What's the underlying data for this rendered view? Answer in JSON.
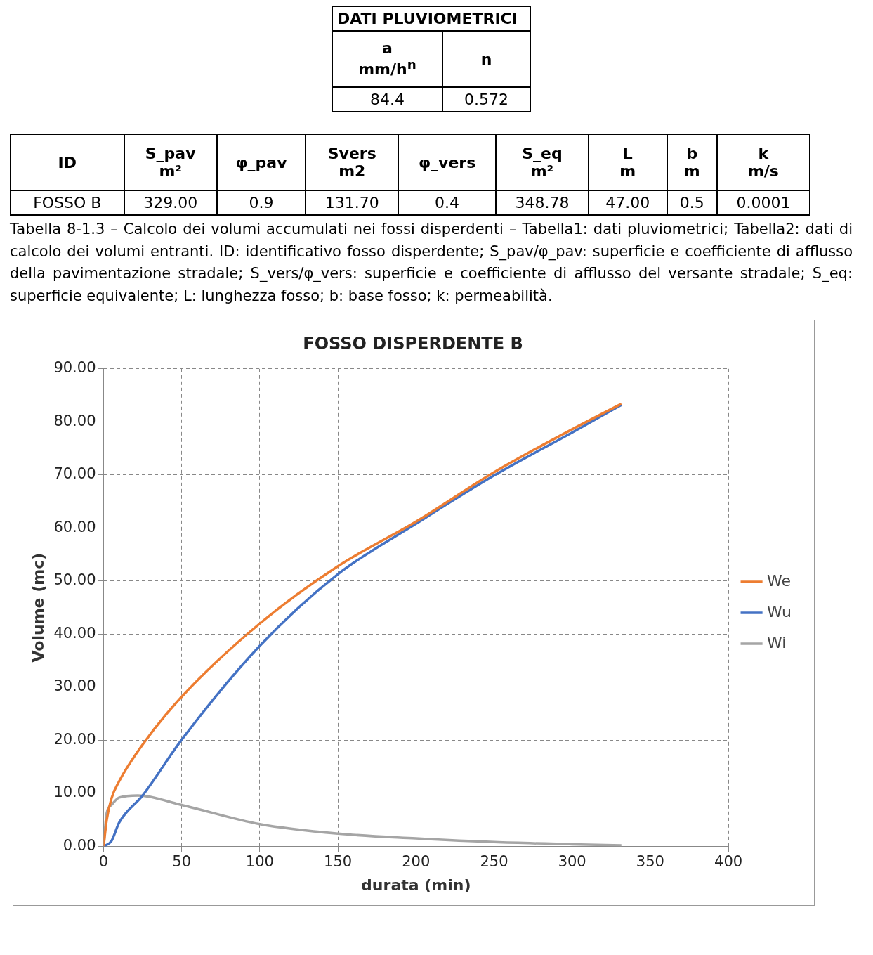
{
  "chart_data": [
    {
      "type": "other",
      "title": "DATI PLUVIOMETRICI",
      "categories": [
        "a\nmm/h$^{n}$",
        "n"
      ],
      "cell_labels": [
        [
          "84.4",
          "0.572"
        ]
      ]
    },
    {
      "type": "other",
      "categories": [
        "ID",
        "S_pav\nm²",
        "φ_pav",
        "Svers\nm2",
        "φ_vers",
        "S_eq\nm²",
        "L\nm",
        "b\nm",
        "k\nm/s"
      ],
      "cell_labels": [
        [
          "FOSSO B",
          "329.00",
          "0.9",
          "131.70",
          "0.4",
          "348.78",
          "47.00",
          "0.5",
          "0.0001"
        ]
      ],
      "annotations": [
        "Tabella 8-1.3 – Calcolo dei volumi accumulati nei fossi disperdenti – Tabella1: dati pluviometrici; Tabella2: dati di calcolo dei volumi entranti. ID: identificativo fosso disperdente; S_pav/φ_pav: superficie e coefficiente di afflusso della pavimentazione stradale; S_vers/φ_vers: superficie e coefficiente di afflusso del versante stradale; S_eq: superficie equivalente; L: lunghezza fosso; b: base fosso; k: permeabilità."
      ]
    },
    {
      "type": "line",
      "title": "FOSSO DISPERDENTE B",
      "xlabel": "durata (min)",
      "ylabel": "Volume (mc)",
      "xlim": [
        0,
        400
      ],
      "xticks": [
        0,
        50,
        100,
        150,
        200,
        250,
        300,
        350,
        400
      ],
      "ylim": [
        0,
        90
      ],
      "yticks": [
        {
          "value": 0,
          "label": "0.00"
        },
        {
          "value": 10,
          "label": "10.00"
        },
        {
          "value": 20,
          "label": "20.00"
        },
        {
          "value": 30,
          "label": "30.00"
        },
        {
          "value": 40,
          "label": "40.00"
        },
        {
          "value": 50,
          "label": "50.00"
        },
        {
          "value": 60,
          "label": "60.00"
        },
        {
          "value": 70,
          "label": "70.00"
        },
        {
          "value": 80,
          "label": "80.00"
        },
        {
          "value": 90,
          "label": "90.00"
        }
      ],
      "grid": true,
      "legend": "right",
      "marker": "none",
      "line_style": "solid",
      "series": [
        {
          "name": "We",
          "color": "#ed7d31",
          "x": [
            0,
            2,
            5,
            10,
            25,
            50,
            100,
            150,
            200,
            250,
            300,
            331.5
          ],
          "values": [
            0,
            5,
            9,
            12.3,
            19.2,
            28.2,
            42,
            52.8,
            61.2,
            70.5,
            78.6,
            83.4
          ]
        },
        {
          "name": "Wu",
          "color": "#4472c4",
          "x": [
            0,
            5,
            10,
            25,
            50,
            100,
            150,
            200,
            250,
            300,
            331.5
          ],
          "values": [
            0,
            1,
            4.5,
            9.6,
            20.1,
            37.8,
            51.3,
            60.8,
            69.9,
            78,
            83.2
          ]
        },
        {
          "name": "Wi",
          "color": "#a5a5a5",
          "x": [
            0,
            2,
            5,
            10,
            22,
            50,
            100,
            150,
            200,
            250,
            300,
            331.5
          ],
          "values": [
            0,
            6.3,
            7.8,
            9.2,
            9.6,
            7.8,
            4.2,
            2.4,
            1.5,
            0.8,
            0.4,
            0.2
          ]
        }
      ]
    }
  ]
}
